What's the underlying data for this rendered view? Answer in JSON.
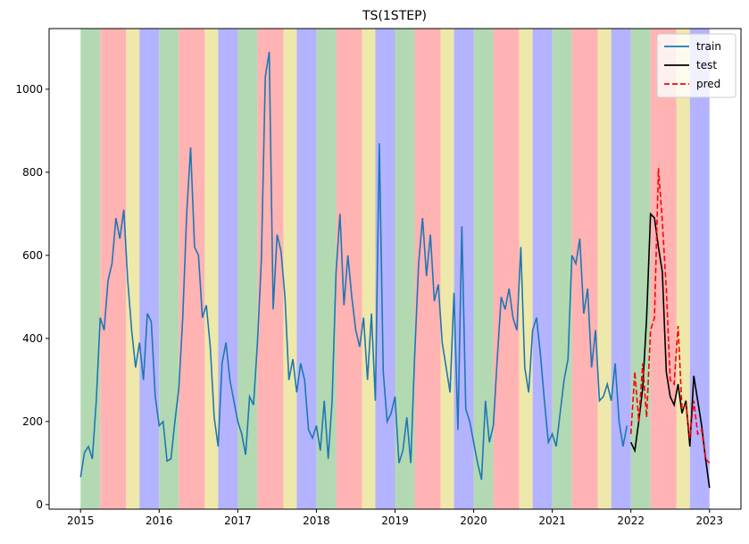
{
  "chart_data": {
    "type": "line",
    "title": "TS(1STEP)",
    "xlim": [
      2014.6,
      2023.4
    ],
    "xticks": [
      2015,
      2016,
      2017,
      2018,
      2019,
      2020,
      2021,
      2022,
      2023
    ],
    "ylim": [
      -11,
      1146
    ],
    "yticks": [
      0,
      200,
      400,
      600,
      800,
      1000
    ],
    "legend": "upper right",
    "bands": [
      {
        "x": [
          2015,
          2015.25
        ],
        "color": "#b3d9b3"
      },
      {
        "x": [
          2015.25,
          2015.58
        ],
        "color": "#ffb3b3"
      },
      {
        "x": [
          2015.58,
          2015.75
        ],
        "color": "#eee8aa"
      },
      {
        "x": [
          2015.75,
          2016
        ],
        "color": "#b3b3ff"
      },
      {
        "x": [
          2016,
          2016.25
        ],
        "color": "#b3d9b3"
      },
      {
        "x": [
          2016.25,
          2016.58
        ],
        "color": "#ffb3b3"
      },
      {
        "x": [
          2016.58,
          2016.75
        ],
        "color": "#eee8aa"
      },
      {
        "x": [
          2016.75,
          2017
        ],
        "color": "#b3b3ff"
      },
      {
        "x": [
          2017,
          2017.25
        ],
        "color": "#b3d9b3"
      },
      {
        "x": [
          2017.25,
          2017.58
        ],
        "color": "#ffb3b3"
      },
      {
        "x": [
          2017.58,
          2017.75
        ],
        "color": "#eee8aa"
      },
      {
        "x": [
          2017.75,
          2018
        ],
        "color": "#b3b3ff"
      },
      {
        "x": [
          2018,
          2018.25
        ],
        "color": "#b3d9b3"
      },
      {
        "x": [
          2018.25,
          2018.58
        ],
        "color": "#ffb3b3"
      },
      {
        "x": [
          2018.58,
          2018.75
        ],
        "color": "#eee8aa"
      },
      {
        "x": [
          2018.75,
          2019
        ],
        "color": "#b3b3ff"
      },
      {
        "x": [
          2019,
          2019.25
        ],
        "color": "#b3d9b3"
      },
      {
        "x": [
          2019.25,
          2019.58
        ],
        "color": "#ffb3b3"
      },
      {
        "x": [
          2019.58,
          2019.75
        ],
        "color": "#eee8aa"
      },
      {
        "x": [
          2019.75,
          2020
        ],
        "color": "#b3b3ff"
      },
      {
        "x": [
          2020,
          2020.25
        ],
        "color": "#b3d9b3"
      },
      {
        "x": [
          2020.25,
          2020.58
        ],
        "color": "#ffb3b3"
      },
      {
        "x": [
          2020.58,
          2020.75
        ],
        "color": "#eee8aa"
      },
      {
        "x": [
          2020.75,
          2021
        ],
        "color": "#b3b3ff"
      },
      {
        "x": [
          2021,
          2021.25
        ],
        "color": "#b3d9b3"
      },
      {
        "x": [
          2021.25,
          2021.58
        ],
        "color": "#ffb3b3"
      },
      {
        "x": [
          2021.58,
          2021.75
        ],
        "color": "#eee8aa"
      },
      {
        "x": [
          2021.75,
          2022
        ],
        "color": "#b3b3ff"
      },
      {
        "x": [
          2022,
          2022.25
        ],
        "color": "#b3d9b3"
      },
      {
        "x": [
          2022.25,
          2022.58
        ],
        "color": "#ffb3b3"
      },
      {
        "x": [
          2022.58,
          2022.75
        ],
        "color": "#eee8aa"
      },
      {
        "x": [
          2022.75,
          2023
        ],
        "color": "#b3b3ff"
      }
    ],
    "series": [
      {
        "name": "train",
        "color": "#1f77b4",
        "dash": false,
        "x": [
          2015,
          2015.05,
          2015.1,
          2015.15,
          2015.2,
          2015.25,
          2015.3,
          2015.35,
          2015.4,
          2015.45,
          2015.5,
          2015.55,
          2015.6,
          2015.65,
          2015.7,
          2015.75,
          2015.8,
          2015.85,
          2015.9,
          2015.95,
          2016,
          2016.05,
          2016.1,
          2016.15,
          2016.2,
          2016.25,
          2016.3,
          2016.35,
          2016.4,
          2016.45,
          2016.5,
          2016.55,
          2016.6,
          2016.65,
          2016.7,
          2016.75,
          2016.8,
          2016.85,
          2016.9,
          2016.95,
          2017,
          2017.05,
          2017.1,
          2017.15,
          2017.2,
          2017.25,
          2017.3,
          2017.35,
          2017.4,
          2017.45,
          2017.5,
          2017.55,
          2017.6,
          2017.65,
          2017.7,
          2017.75,
          2017.8,
          2017.85,
          2017.9,
          2017.95,
          2018,
          2018.05,
          2018.1,
          2018.15,
          2018.2,
          2018.25,
          2018.3,
          2018.35,
          2018.4,
          2018.45,
          2018.5,
          2018.55,
          2018.6,
          2018.65,
          2018.7,
          2018.75,
          2018.8,
          2018.85,
          2018.9,
          2018.95,
          2019,
          2019.05,
          2019.1,
          2019.15,
          2019.2,
          2019.25,
          2019.3,
          2019.35,
          2019.4,
          2019.45,
          2019.5,
          2019.55,
          2019.6,
          2019.65,
          2019.7,
          2019.75,
          2019.8,
          2019.85,
          2019.9,
          2019.95,
          2020,
          2020.05,
          2020.1,
          2020.15,
          2020.2,
          2020.25,
          2020.3,
          2020.35,
          2020.4,
          2020.45,
          2020.5,
          2020.55,
          2020.6,
          2020.65,
          2020.7,
          2020.75,
          2020.8,
          2020.85,
          2020.9,
          2020.95,
          2021,
          2021.05,
          2021.1,
          2021.15,
          2021.2,
          2021.25,
          2021.3,
          2021.35,
          2021.4,
          2021.45,
          2021.5,
          2021.55,
          2021.6,
          2021.65,
          2021.7,
          2021.75,
          2021.8,
          2021.85,
          2021.9,
          2021.95
        ],
        "values": [
          66,
          125,
          140,
          110,
          250,
          450,
          420,
          540,
          580,
          690,
          640,
          710,
          540,
          420,
          330,
          390,
          300,
          460,
          440,
          260,
          190,
          200,
          105,
          110,
          200,
          280,
          450,
          700,
          860,
          620,
          600,
          450,
          480,
          380,
          210,
          140,
          340,
          390,
          300,
          250,
          200,
          170,
          120,
          260,
          240,
          390,
          590,
          1030,
          1090,
          470,
          650,
          610,
          500,
          300,
          350,
          270,
          340,
          300,
          180,
          160,
          190,
          130,
          250,
          110,
          250,
          560,
          700,
          480,
          600,
          500,
          420,
          380,
          450,
          300,
          460,
          250,
          870,
          320,
          200,
          220,
          260,
          100,
          130,
          210,
          100,
          360,
          580,
          690,
          550,
          650,
          490,
          530,
          390,
          330,
          270,
          510,
          180,
          670,
          230,
          200,
          150,
          100,
          60,
          250,
          150,
          190,
          350,
          500,
          470,
          520,
          450,
          420,
          620,
          330,
          270,
          420,
          450,
          360,
          250,
          150,
          170,
          140,
          220,
          300,
          350,
          600,
          580,
          640,
          460,
          520,
          330,
          420,
          250,
          260,
          290,
          250,
          340,
          200,
          140,
          190
        ]
      },
      {
        "name": "test",
        "color": "#000000",
        "dash": false,
        "x": [
          2022,
          2022.05,
          2022.1,
          2022.15,
          2022.2,
          2022.25,
          2022.3,
          2022.35,
          2022.4,
          2022.45,
          2022.5,
          2022.55,
          2022.6,
          2022.65,
          2022.7,
          2022.75,
          2022.8,
          2022.85,
          2022.9,
          2022.95,
          2023
        ],
        "values": [
          150,
          130,
          200,
          280,
          450,
          700,
          690,
          620,
          560,
          320,
          260,
          240,
          290,
          220,
          250,
          140,
          310,
          250,
          190,
          110,
          40
        ]
      },
      {
        "name": "pred",
        "color": "#ff0000",
        "dash": true,
        "x": [
          2022,
          2022.05,
          2022.1,
          2022.15,
          2022.2,
          2022.25,
          2022.3,
          2022.35,
          2022.4,
          2022.45,
          2022.5,
          2022.55,
          2022.6,
          2022.65,
          2022.7,
          2022.75,
          2022.8,
          2022.85,
          2022.9,
          2022.95,
          2023
        ],
        "values": [
          170,
          320,
          200,
          340,
          210,
          420,
          450,
          810,
          680,
          520,
          300,
          290,
          430,
          230,
          240,
          160,
          250,
          170,
          180,
          110,
          100
        ]
      }
    ]
  }
}
